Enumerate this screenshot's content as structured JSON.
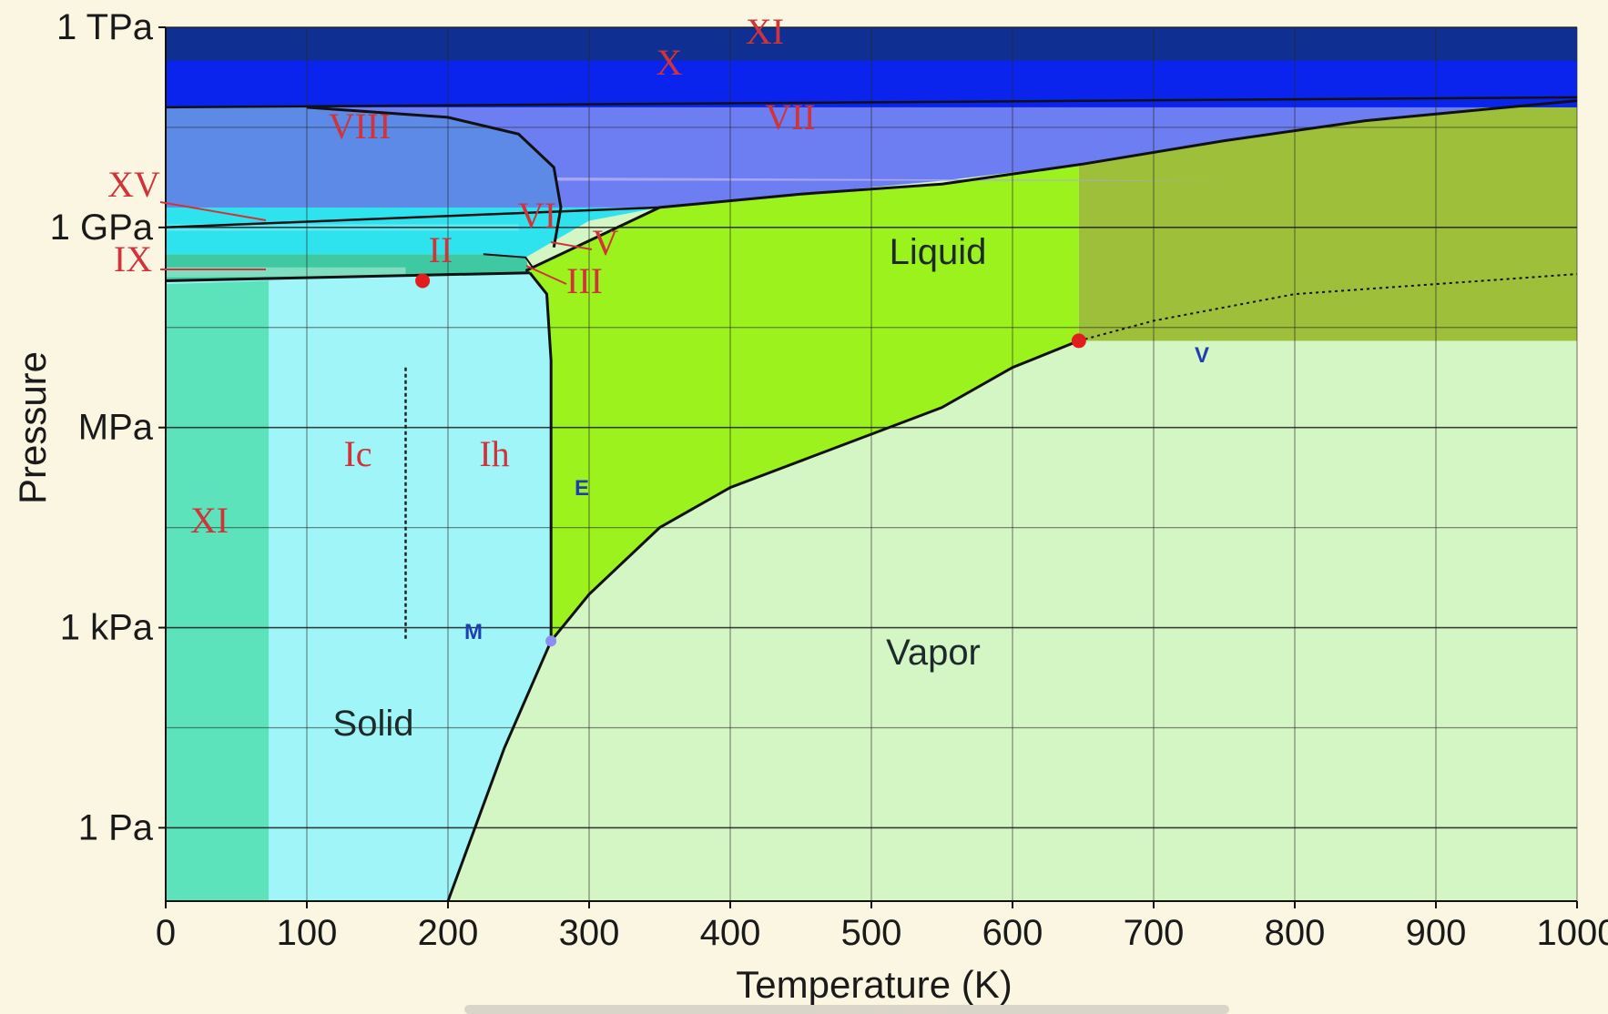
{
  "chart_data": {
    "type": "area",
    "title": "",
    "xlabel": "Temperature (K)",
    "ylabel": "Pressure",
    "xlim": [
      0,
      1000
    ],
    "ylog10_range_Pa": [
      -1.1,
      12
    ],
    "x_ticks": [
      0,
      100,
      200,
      300,
      400,
      500,
      600,
      700,
      800,
      900,
      1000
    ],
    "y_ticks": [
      {
        "label": "1 TPa",
        "log10_Pa": 12
      },
      {
        "label": "1 GPa",
        "log10_Pa": 9
      },
      {
        "label": "MPa",
        "log10_Pa": 6
      },
      {
        "label": "1 kPa",
        "log10_Pa": 3
      },
      {
        "label": "1 Pa",
        "log10_Pa": 0
      }
    ],
    "grid": true,
    "regions": [
      {
        "label": "Solid",
        "style": "big"
      },
      {
        "label": "Liquid",
        "style": "big"
      },
      {
        "label": "Vapor",
        "style": "big"
      },
      {
        "label": "XI",
        "style": "red"
      },
      {
        "label": "X",
        "style": "red"
      },
      {
        "label": "VIII",
        "style": "red"
      },
      {
        "label": "VII",
        "style": "red"
      },
      {
        "label": "XV",
        "style": "red"
      },
      {
        "label": "VI",
        "style": "red"
      },
      {
        "label": "V",
        "style": "red"
      },
      {
        "label": "IX",
        "style": "red"
      },
      {
        "label": "II",
        "style": "red"
      },
      {
        "label": "III",
        "style": "red"
      },
      {
        "label": "Ic",
        "style": "red"
      },
      {
        "label": "Ih",
        "style": "red"
      },
      {
        "label": "XI",
        "style": "red"
      },
      {
        "label": "E",
        "style": "blue"
      },
      {
        "label": "M",
        "style": "blue"
      },
      {
        "label": "V",
        "style": "blue"
      }
    ],
    "phase_boundaries": {
      "sublimation": {
        "x": [
          200,
          240,
          273
        ],
        "y_log10_Pa": [
          -1.1,
          1.2,
          2.8
        ]
      },
      "vaporization": {
        "x": [
          273,
          300,
          350,
          400,
          450,
          500,
          550,
          600,
          647
        ],
        "y_log10_Pa": [
          2.8,
          3.5,
          4.5,
          5.1,
          5.5,
          5.9,
          6.3,
          6.9,
          7.3
        ]
      },
      "melting_Ih": {
        "x": [
          273,
          273,
          270,
          258
        ],
        "y_log10_Pa": [
          2.8,
          7.0,
          8.0,
          8.32
        ]
      },
      "liquid_high_pressure": {
        "x": [
          255,
          350,
          450,
          550,
          650,
          750,
          850,
          1000
        ],
        "y_log10_Pa": [
          8.35,
          9.3,
          9.5,
          9.65,
          9.95,
          10.3,
          10.6,
          10.9
        ]
      },
      "supercritical_extension": {
        "x": [
          647,
          700,
          800,
          900,
          1000
        ],
        "y_log10_Pa": [
          7.3,
          7.6,
          8.0,
          8.15,
          8.3
        ]
      }
    },
    "points": [
      {
        "name": "triple point (Ih/liquid/vapor)",
        "x": 273,
        "y_log10_Pa": 2.8
      },
      {
        "name": "critical point",
        "x": 647,
        "y_log10_Pa": 7.3
      },
      {
        "name": "red point",
        "x": 182,
        "y_log10_Pa": 8.2
      }
    ]
  }
}
